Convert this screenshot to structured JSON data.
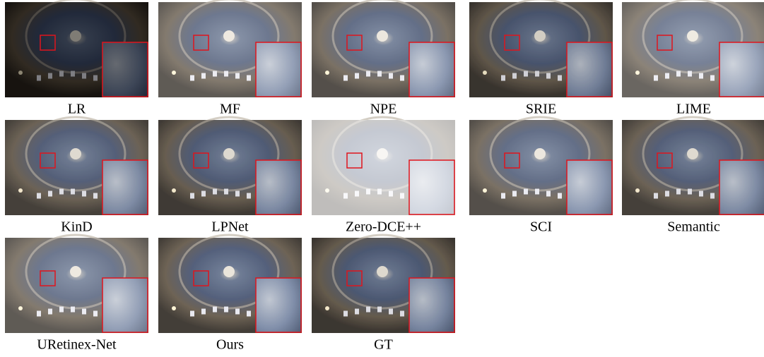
{
  "captions": [
    "LR",
    "MF",
    "NPE",
    "SRIE",
    "LIME",
    "KinD",
    "LPNet",
    "Zero-DCE++",
    "SCI",
    "Semantic",
    "URetinex-Net",
    "Ours",
    "GT"
  ]
}
